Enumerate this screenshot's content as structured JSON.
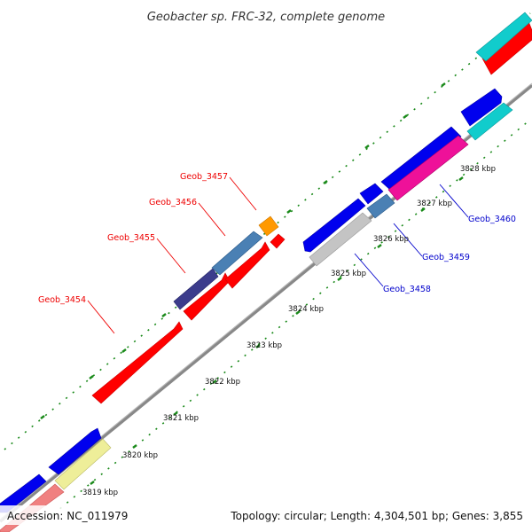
{
  "title": "Geobacter sp. FRC-32, complete genome",
  "footer": {
    "accession": "Accession: NC_011979",
    "summary": "Topology: circular; Length: 4,304,501 bp; Genes: 3,855"
  },
  "colors": {
    "forward_label": "#ee0000",
    "reverse_label": "#0000cc",
    "backbone": "#888888",
    "tick": "#1a8a1a",
    "red": "#ff0000",
    "blue": "#0000ee",
    "cyan": "#11cccc",
    "steelblue": "#4a80b4",
    "darkslate": "#3c3c8c",
    "orange": "#ff9900",
    "gray": "#c4c4c4",
    "magenta": "#ee1199",
    "pink": "#f08080",
    "khaki": "#eeee99"
  },
  "kbp_labels": [
    "3819 kbp",
    "3820 kbp",
    "3821 kbp",
    "3822 kbp",
    "3823 kbp",
    "3824 kbp",
    "3825 kbp",
    "3826 kbp",
    "3827 kbp",
    "3828 kbp"
  ],
  "genes": [
    {
      "label": "Geob_3454",
      "color": "red",
      "strand": "forward"
    },
    {
      "label": "Geob_3455",
      "color": "darkslate",
      "strand": "forward"
    },
    {
      "label": "Geob_3456",
      "color": "steelblue",
      "strand": "forward"
    },
    {
      "label": "Geob_3457",
      "color": "orange",
      "strand": "forward"
    },
    {
      "label": "Geob_3458",
      "color": "gray",
      "strand": "reverse"
    },
    {
      "label": "Geob_3459",
      "color": "steelblue",
      "strand": "reverse"
    },
    {
      "label": "Geob_3460",
      "color": "magenta",
      "strand": "reverse"
    }
  ]
}
